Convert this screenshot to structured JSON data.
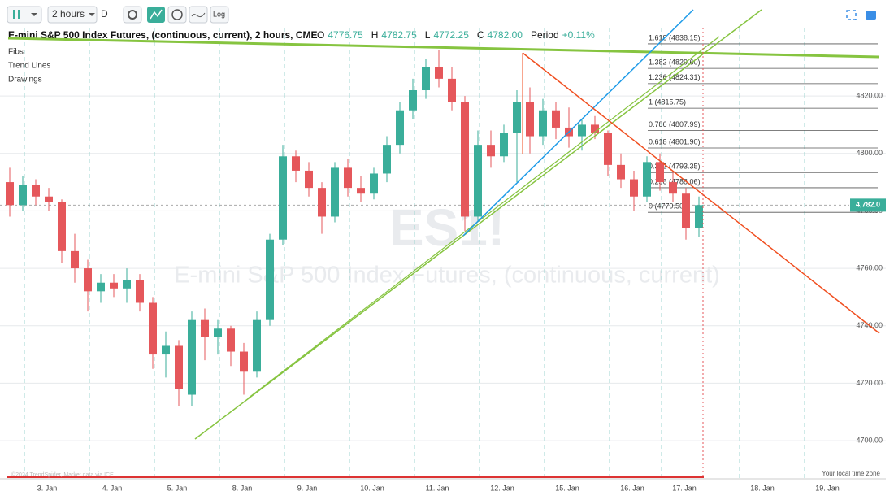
{
  "toolbar": {
    "interval": "2 hours",
    "interval_short": "D",
    "scale": "Log"
  },
  "chart_data": {
    "type": "candlestick",
    "title": "E-mini S&P 500 Index Futures, (continuous, current), 2 hours, CME",
    "quote": [
      {
        "label": "O",
        "value": 4776.75
      },
      {
        "label": "H",
        "value": 4782.75
      },
      {
        "label": "L",
        "value": 4772.25
      },
      {
        "label": "C",
        "value": 4782,
        "value_label": "4782.00"
      },
      {
        "label": "Period",
        "value": 0.11,
        "value_label": "+0.11%"
      }
    ],
    "legend": [
      "Fibs",
      "Trend Lines",
      "Drawings"
    ],
    "watermark": "ES1!",
    "subtitle": "E-mini S&P 500 Index Futures, (continuous, current)",
    "categories": [
      null,
      null,
      null,
      "3. Jan",
      null,
      null,
      null,
      null,
      "4. Jan",
      null,
      null,
      null,
      null,
      "5. Jan",
      null,
      null,
      null,
      null,
      "8. Jan",
      null,
      null,
      null,
      null,
      "9. Jan",
      null,
      null,
      null,
      null,
      "10. Jan",
      null,
      null,
      null,
      null,
      "11. Jan",
      null,
      null,
      null,
      null,
      "12. Jan",
      null,
      null,
      null,
      null,
      "15. Jan",
      null,
      null,
      null,
      null,
      "16. Jan",
      null,
      null,
      null,
      "17. Jan",
      null,
      null,
      null,
      null,
      null,
      "18. Jan",
      null,
      null,
      null,
      null,
      "19. Jan",
      null
    ],
    "open": [
      4790,
      4782,
      4789,
      4785,
      4783,
      4766,
      4760,
      4752,
      4755,
      4753,
      4756,
      4748,
      4730,
      4733,
      4716,
      4742,
      4736,
      4739,
      4731,
      4724,
      4742,
      4770,
      4799,
      4794,
      4788,
      4778,
      4795,
      4788,
      4786,
      4793,
      4803,
      4815,
      4822,
      4830,
      4826,
      4818,
      4778,
      4803,
      4799,
      4807,
      4818,
      4806,
      4815,
      4809,
      4806,
      4810,
      4807,
      4796,
      4791,
      4785,
      4797,
      4790,
      4786,
      4774,
      null,
      null,
      null,
      null,
      null,
      null,
      null,
      null,
      null,
      null,
      null
    ],
    "high": [
      4795,
      4792,
      4791,
      4788,
      4784,
      4772,
      4763,
      4758,
      4758,
      4760,
      4758,
      4750,
      4738,
      4735,
      4745,
      4746,
      4742,
      4740,
      4734,
      4745,
      4772,
      4803,
      4801,
      4797,
      4790,
      4797,
      4798,
      4792,
      4795,
      4806,
      4818,
      4826,
      4833,
      4836,
      4830,
      4820,
      4808,
      4808,
      4810,
      4822,
      4823,
      4819,
      4818,
      4816,
      4812,
      4813,
      4808,
      4800,
      4794,
      4799,
      4800,
      4794,
      4788,
      4785,
      null,
      null,
      null,
      null,
      null,
      null,
      null,
      null,
      null,
      null,
      null
    ],
    "low": [
      4778,
      4780,
      4782,
      4780,
      4762,
      4755,
      4745,
      4748,
      4750,
      4748,
      4745,
      4725,
      4722,
      4712,
      4712,
      4728,
      4730,
      4726,
      4716,
      4722,
      4740,
      4768,
      4790,
      4785,
      4772,
      4776,
      4785,
      4783,
      4784,
      4790,
      4800,
      4812,
      4819,
      4823,
      4815,
      4773,
      4776,
      4795,
      4797,
      4790,
      4800,
      4803,
      4805,
      4802,
      4801,
      4805,
      4792,
      4788,
      4780,
      4783,
      4787,
      4783,
      4770,
      4771,
      null,
      null,
      null,
      null,
      null,
      null,
      null,
      null,
      null,
      null,
      null
    ],
    "close": [
      4782,
      4789,
      4785,
      4783,
      4766,
      4760,
      4752,
      4755,
      4753,
      4756,
      4748,
      4730,
      4733,
      4718,
      4742,
      4736,
      4739,
      4731,
      4724,
      4742,
      4770,
      4799,
      4794,
      4788,
      4778,
      4795,
      4788,
      4786,
      4793,
      4803,
      4815,
      4822,
      4830,
      4826,
      4818,
      4778,
      4803,
      4799,
      4807,
      4818,
      4806,
      4815,
      4809,
      4806,
      4810,
      4807,
      4796,
      4791,
      4785,
      4797,
      4790,
      4786,
      4774,
      4782,
      null,
      null,
      null,
      null,
      null,
      null,
      null,
      null,
      null,
      null,
      null
    ],
    "colors": {
      "up": "#3aae9a",
      "down": "#e5575b"
    },
    "ylim": [
      4687,
      4838.7
    ],
    "yticks": [
      {
        "value": 4700,
        "label": "4700.00"
      },
      {
        "value": 4720,
        "label": "4720.00"
      },
      {
        "value": 4740,
        "label": "4740.00"
      },
      {
        "value": 4760,
        "label": "4760.00"
      },
      {
        "value": 4780,
        "label": "4780.00"
      },
      {
        "value": 4800,
        "label": "4800.00"
      },
      {
        "value": 4820,
        "label": "4820.00"
      }
    ],
    "last_price": {
      "value": 4782,
      "label": "4,782.0"
    },
    "fib_levels": [
      {
        "value": 4838.15,
        "label": "1.618 (4838.15)"
      },
      {
        "value": 4829.6,
        "label": "1.382 (4829.60)"
      },
      {
        "value": 4824.31,
        "label": "1.236 (4824.31)"
      },
      {
        "value": 4815.75,
        "label": "1 (4815.75)"
      },
      {
        "value": 4807.99,
        "label": "0.786 (4807.99)"
      },
      {
        "value": 4801.9,
        "label": "0.618 (4801.90)"
      },
      {
        "value": 4793.35,
        "label": "0.382 (4793.35)"
      },
      {
        "value": 4788.06,
        "label": "0.236 (4788.06)"
      },
      {
        "value": 4779.5,
        "label": "0 (4779.50)"
      }
    ],
    "footer": "Your local time zone",
    "credit": "©2024 TrendSpider, Market data via ICE"
  }
}
